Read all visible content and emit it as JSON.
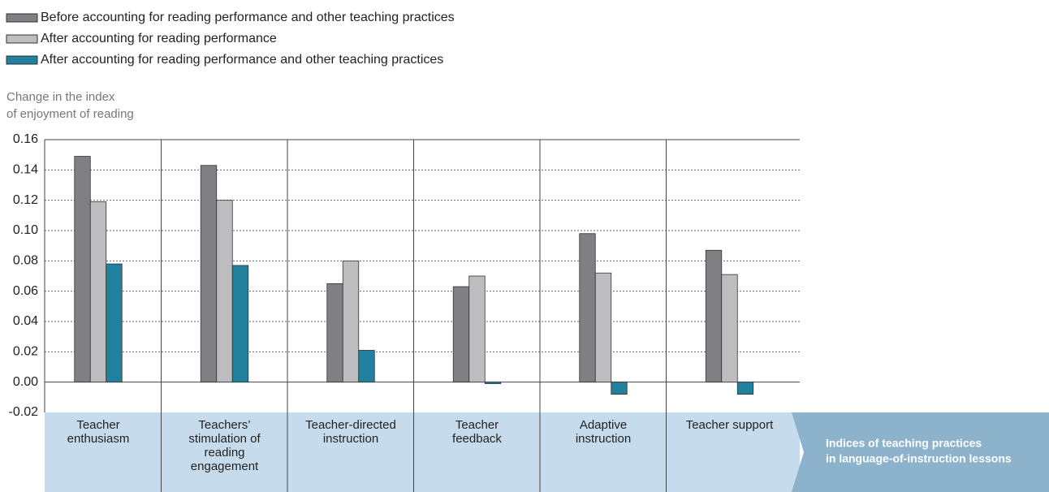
{
  "chart_data": {
    "type": "bar",
    "y_axis_label": [
      "Change in the index",
      "of enjoyment of reading"
    ],
    "x_axis_title": [
      "Indices of teaching practices",
      "in language-of-instruction lessons"
    ],
    "categories": [
      "Teacher enthusiasm",
      "Teachers’ stimulation of reading engagement",
      "Teacher-directed instruction",
      "Teacher feedback",
      "Adaptive instruction",
      "Teacher support"
    ],
    "series": [
      {
        "name": "Before accounting for reading performance and other teaching practices",
        "color": "#7f7f84",
        "values": [
          0.149,
          0.143,
          0.065,
          0.063,
          0.098,
          0.087
        ]
      },
      {
        "name": "After accounting for reading performance",
        "color": "#bdbdc0",
        "values": [
          0.119,
          0.12,
          0.08,
          0.07,
          0.072,
          0.071
        ]
      },
      {
        "name": "After accounting for reading performance and other teaching practices",
        "color": "#21809e",
        "values": [
          0.078,
          0.077,
          0.021,
          -0.001,
          -0.008,
          -0.008
        ]
      }
    ],
    "ylim": [
      -0.02,
      0.16
    ],
    "yticks": [
      {
        "value": -0.02,
        "label": "-0.02"
      },
      {
        "value": 0,
        "label": "0.00"
      },
      {
        "value": 0.02,
        "label": "0.02"
      },
      {
        "value": 0.04,
        "label": "0.04"
      },
      {
        "value": 0.06,
        "label": "0.06"
      },
      {
        "value": 0.08,
        "label": "0.08"
      },
      {
        "value": 0.1,
        "label": "0.10"
      },
      {
        "value": 0.12,
        "label": "0.12"
      },
      {
        "value": 0.14,
        "label": "0.14"
      },
      {
        "value": 0.16,
        "label": "0.16"
      }
    ],
    "grid": true
  }
}
